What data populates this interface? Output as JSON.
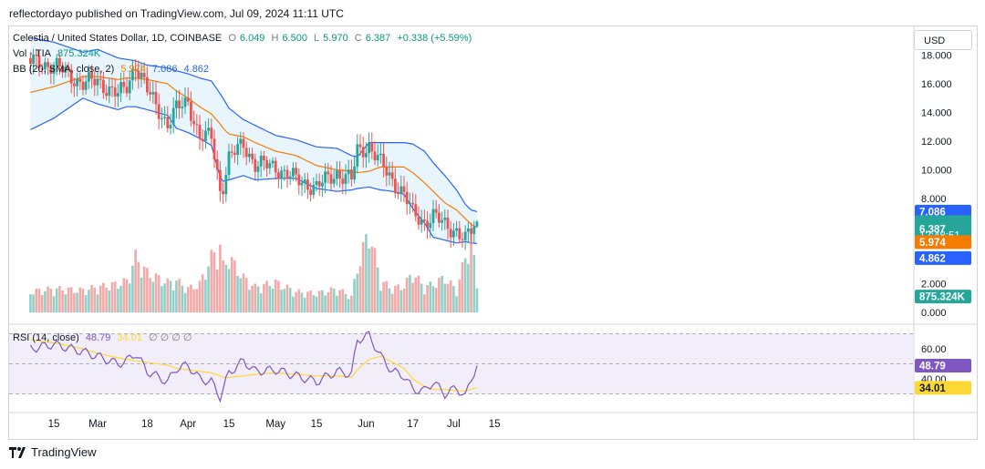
{
  "header": {
    "published_line": "reflectordayo published on TradingView.com, Jul 09, 2024 11:11 UTC"
  },
  "currency_button": "USD",
  "legend": {
    "symbol": "Celestia / United States Dollar, 1D, COINBASE",
    "open_label": "O",
    "open": "6.049",
    "high_label": "H",
    "high": "6.500",
    "low_label": "L",
    "low": "5.970",
    "close_label": "C",
    "close": "6.387",
    "change": "+0.338 (+5.59%)",
    "vol_label": "Vol · TIA",
    "vol_value": "875.324K",
    "bb_label": "BB (20, SMA, close, 2)",
    "bb_basis": "5.974",
    "bb_upper": "7.086",
    "bb_lower": "4.862",
    "rsi_label": "RSI (14, close)",
    "rsi_value": "48.79",
    "rsi_ma": "34.01",
    "rsi_extra": "∅ ∅ ∅ ∅"
  },
  "price_axis": {
    "ticks": [
      "18.000",
      "16.000",
      "14.000",
      "12.000",
      "10.000",
      "8.000",
      "2.000",
      "0.000"
    ],
    "tags": {
      "upper": "7.086",
      "close": "6.387",
      "countdown": "12:48:51",
      "basis": "5.974",
      "lower": "4.862",
      "volume": "875.324K"
    }
  },
  "rsi_axis": {
    "ticks": [
      "60.00",
      "40.00"
    ],
    "tags": {
      "rsi": "48.79",
      "ma": "34.01"
    }
  },
  "time_axis": {
    "labels": [
      "15",
      "Mar",
      "18",
      "Apr",
      "15",
      "May",
      "15",
      "Jun",
      "17",
      "Jul",
      "15"
    ]
  },
  "footer": {
    "brand": "TradingView"
  },
  "colors": {
    "up": "#26a69a",
    "down": "#ef5350",
    "vol_up": "#8fd0c7",
    "vol_down": "#f3a9a7",
    "bb_basis": "#f57c00",
    "bb_band": "#2962ff",
    "bb_fill": "#e3f2fd",
    "rsi_line": "#7e57c2",
    "rsi_ma": "#fdd835",
    "rsi_fill": "#ede7f6"
  },
  "chart_data": {
    "type": "candlestick",
    "title": "Celestia / United States Dollar, 1D, COINBASE",
    "period": "2024-02-07 to 2024-07-09, daily",
    "price_range": [
      0,
      19
    ],
    "rsi_range": [
      20,
      80
    ],
    "rsi_levels": [
      70,
      50,
      30
    ],
    "anchors": {
      "dates": [
        "2024-02-07",
        "2024-02-15",
        "2024-02-25",
        "2024-03-01",
        "2024-03-08",
        "2024-03-11",
        "2024-03-14",
        "2024-03-18",
        "2024-03-25",
        "2024-03-28",
        "2024-04-01",
        "2024-04-05",
        "2024-04-09",
        "2024-04-12",
        "2024-04-13",
        "2024-04-15",
        "2024-04-20",
        "2024-04-24",
        "2024-05-01",
        "2024-05-08",
        "2024-05-15",
        "2024-05-22",
        "2024-05-27",
        "2024-05-29",
        "2024-06-02",
        "2024-06-06",
        "2024-06-10",
        "2024-06-14",
        "2024-06-17",
        "2024-06-21",
        "2024-06-24",
        "2024-06-28",
        "2024-07-02",
        "2024-07-05",
        "2024-07-07",
        "2024-07-09"
      ],
      "close": [
        17.5,
        17.3,
        16.0,
        16.2,
        15.2,
        15.8,
        17.4,
        15.5,
        13.2,
        14.2,
        14.8,
        12.2,
        12.3,
        8.6,
        9.0,
        10.8,
        11.8,
        10.4,
        10.2,
        9.3,
        8.8,
        9.8,
        9.3,
        11.3,
        11.7,
        10.4,
        9.3,
        8.3,
        6.9,
        6.4,
        6.8,
        6.1,
        5.8,
        5.1,
        5.7,
        6.387
      ],
      "bb_upper": [
        19.2,
        18.9,
        18.2,
        18.4,
        17.8,
        17.7,
        17.6,
        17.3,
        17.1,
        16.9,
        16.7,
        16.4,
        16.2,
        15.3,
        15.0,
        14.3,
        13.5,
        13.1,
        12.4,
        12.1,
        11.6,
        11.5,
        11.0,
        10.9,
        11.9,
        11.9,
        11.9,
        11.9,
        11.8,
        11.3,
        10.5,
        9.6,
        8.6,
        7.6,
        7.2,
        7.086
      ],
      "bb_basis": [
        15.4,
        15.8,
        16.5,
        16.5,
        16.3,
        16.4,
        16.4,
        16.3,
        16.0,
        15.5,
        15.0,
        14.4,
        13.9,
        13.2,
        12.9,
        12.5,
        12.3,
        11.9,
        11.3,
        11.0,
        10.3,
        10.0,
        9.9,
        9.8,
        9.9,
        10.2,
        10.2,
        10.2,
        9.8,
        9.1,
        8.5,
        7.7,
        7.2,
        6.6,
        6.2,
        5.974
      ],
      "bb_lower": [
        12.8,
        13.6,
        15.0,
        14.6,
        14.2,
        14.4,
        14.4,
        14.2,
        13.8,
        12.9,
        12.6,
        12.2,
        11.7,
        9.5,
        9.2,
        9.3,
        9.6,
        9.3,
        9.4,
        9.4,
        8.7,
        8.5,
        8.6,
        8.7,
        8.8,
        8.6,
        8.5,
        8.3,
        7.3,
        6.3,
        5.3,
        5.1,
        4.9,
        5.0,
        4.9,
        4.862
      ],
      "volume": [
        1.3,
        1.5,
        1.4,
        1.6,
        1.8,
        2.0,
        3.5,
        2.5,
        1.9,
        2.0,
        1.5,
        1.8,
        3.5,
        4.2,
        2.9,
        3.5,
        2.2,
        1.6,
        1.9,
        1.3,
        1.2,
        1.5,
        1.0,
        2.8,
        5.2,
        2.0,
        1.5,
        1.7,
        2.5,
        1.6,
        1.8,
        2.2,
        1.4,
        3.5,
        4.8,
        1.7
      ],
      "rsi": [
        60,
        63,
        58,
        55,
        50,
        52,
        57,
        45,
        38,
        47,
        49,
        40,
        38,
        28,
        33,
        44,
        52,
        45,
        46,
        42,
        38,
        45,
        43,
        66,
        69,
        55,
        45,
        42,
        33,
        32,
        38,
        30,
        34,
        28,
        40,
        48.79
      ],
      "rsi_ma": [
        66,
        64,
        60,
        57,
        54,
        53,
        52,
        51,
        49,
        47,
        46,
        45,
        44,
        42,
        41,
        41,
        42,
        43,
        44,
        43,
        42,
        42,
        41,
        46,
        53,
        55,
        51,
        47,
        40,
        35,
        33,
        33,
        32,
        32,
        33,
        34.01
      ]
    }
  }
}
